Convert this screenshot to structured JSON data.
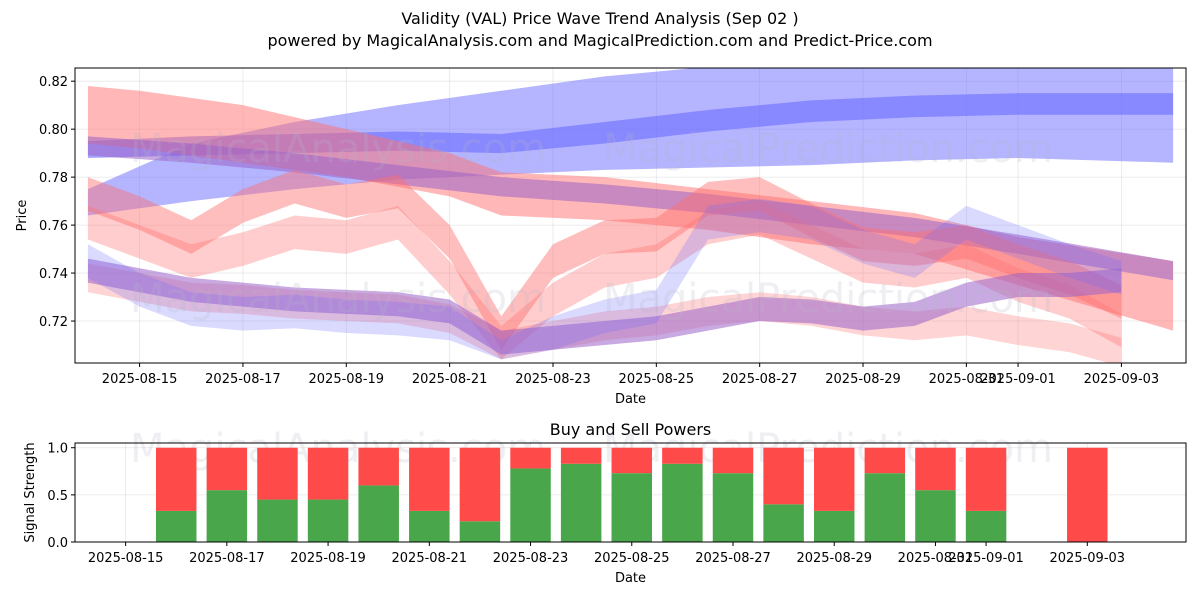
{
  "titles": {
    "main": "Validity (VAL) Price Wave Trend Analysis (Sep 02 )",
    "sub": "powered by MagicalAnalysis.com and MagicalPrediction.com and Predict-Price.com"
  },
  "watermarks": [
    "MagicalAnalysis.com",
    "MagicalPrediction.com"
  ],
  "colors": {
    "buy": "#4aa64a",
    "sell": "#ff4a4a",
    "up_band": "#6a6aff",
    "down_band": "#ff6f6f"
  },
  "chart_data": [
    {
      "type": "area",
      "title": "",
      "xlabel": "Date",
      "ylabel": "Price",
      "x_range": [
        "2025-08-13 18:00",
        "2025-09-04 06:00"
      ],
      "ylim": [
        0.7025,
        0.8255
      ],
      "x_ticks": [
        "2025-08-15",
        "2025-08-17",
        "2025-08-19",
        "2025-08-21",
        "2025-08-23",
        "2025-08-25",
        "2025-08-27",
        "2025-08-29",
        "2025-08-31",
        "2025-09-01",
        "2025-09-03"
      ],
      "y_ticks": [
        0.72,
        0.74,
        0.76,
        0.78,
        0.8,
        0.82
      ],
      "y_tick_labels": [
        "0.72",
        "0.74",
        "0.76",
        "0.78",
        "0.80",
        "0.82"
      ],
      "grid": true,
      "series": [
        {
          "name": "blue-wide-upper",
          "color": "blue",
          "opacity": 0.5,
          "x": [
            "2025-08-14",
            "2025-08-16",
            "2025-08-18",
            "2025-08-20",
            "2025-08-22",
            "2025-08-24",
            "2025-08-26",
            "2025-08-28",
            "2025-08-30",
            "2025-09-01",
            "2025-09-04"
          ],
          "upper": [
            0.775,
            0.794,
            0.803,
            0.81,
            0.816,
            0.822,
            0.826,
            0.828,
            0.829,
            0.83,
            0.83
          ],
          "lower": [
            0.764,
            0.77,
            0.775,
            0.779,
            0.781,
            0.783,
            0.784,
            0.785,
            0.787,
            0.788,
            0.786
          ]
        },
        {
          "name": "blue-mid",
          "color": "blue",
          "opacity": 0.6,
          "x": [
            "2025-08-14",
            "2025-08-16",
            "2025-08-18",
            "2025-08-20",
            "2025-08-22",
            "2025-08-24",
            "2025-08-26",
            "2025-08-28",
            "2025-08-30",
            "2025-09-01",
            "2025-09-04"
          ],
          "upper": [
            0.795,
            0.797,
            0.798,
            0.799,
            0.798,
            0.803,
            0.808,
            0.812,
            0.814,
            0.815,
            0.815
          ],
          "lower": [
            0.788,
            0.789,
            0.79,
            0.791,
            0.79,
            0.794,
            0.799,
            0.803,
            0.805,
            0.806,
            0.806
          ]
        },
        {
          "name": "red-falling-upper",
          "color": "red",
          "opacity": 0.5,
          "x": [
            "2025-08-14",
            "2025-08-15",
            "2025-08-17",
            "2025-08-19",
            "2025-08-21",
            "2025-08-22",
            "2025-08-24",
            "2025-08-26",
            "2025-08-28",
            "2025-08-30",
            "2025-09-01",
            "2025-09-04"
          ],
          "upper": [
            0.818,
            0.816,
            0.81,
            0.8,
            0.79,
            0.782,
            0.78,
            0.775,
            0.77,
            0.765,
            0.755,
            0.745
          ],
          "lower": [
            0.794,
            0.792,
            0.786,
            0.78,
            0.772,
            0.764,
            0.762,
            0.758,
            0.752,
            0.748,
            0.735,
            0.716
          ]
        },
        {
          "name": "purple-diagonal",
          "color": "purple",
          "opacity": 0.55,
          "x": [
            "2025-08-14",
            "2025-08-16",
            "2025-08-18",
            "2025-08-20",
            "2025-08-22",
            "2025-08-24",
            "2025-08-26",
            "2025-08-28",
            "2025-08-30",
            "2025-09-01",
            "2025-09-04"
          ],
          "upper": [
            0.797,
            0.794,
            0.79,
            0.785,
            0.78,
            0.777,
            0.773,
            0.768,
            0.763,
            0.756,
            0.745
          ],
          "lower": [
            0.789,
            0.786,
            0.782,
            0.777,
            0.772,
            0.769,
            0.765,
            0.76,
            0.755,
            0.748,
            0.737
          ]
        },
        {
          "name": "red-wave-high",
          "color": "red",
          "opacity": 0.45,
          "x": [
            "2025-08-14",
            "2025-08-15",
            "2025-08-16",
            "2025-08-17",
            "2025-08-18",
            "2025-08-19",
            "2025-08-20",
            "2025-08-21",
            "2025-08-22",
            "2025-08-23",
            "2025-08-24",
            "2025-08-25",
            "2025-08-26",
            "2025-08-27",
            "2025-08-28",
            "2025-08-29",
            "2025-08-30",
            "2025-08-31",
            "2025-09-01",
            "2025-09-02",
            "2025-09-03"
          ],
          "upper": [
            0.78,
            0.772,
            0.762,
            0.775,
            0.783,
            0.777,
            0.781,
            0.76,
            0.722,
            0.752,
            0.762,
            0.763,
            0.778,
            0.78,
            0.769,
            0.759,
            0.757,
            0.76,
            0.752,
            0.745,
            0.735
          ],
          "lower": [
            0.766,
            0.758,
            0.748,
            0.761,
            0.769,
            0.763,
            0.767,
            0.746,
            0.708,
            0.738,
            0.748,
            0.749,
            0.764,
            0.766,
            0.755,
            0.745,
            0.743,
            0.746,
            0.738,
            0.731,
            0.721
          ]
        },
        {
          "name": "red-wave-mid",
          "color": "red",
          "opacity": 0.35,
          "x": [
            "2025-08-14",
            "2025-08-15",
            "2025-08-16",
            "2025-08-17",
            "2025-08-18",
            "2025-08-19",
            "2025-08-20",
            "2025-08-21",
            "2025-08-22",
            "2025-08-23",
            "2025-08-24",
            "2025-08-25",
            "2025-08-26",
            "2025-08-27",
            "2025-08-28",
            "2025-08-29",
            "2025-08-30",
            "2025-08-31",
            "2025-09-01",
            "2025-09-02",
            "2025-09-03"
          ],
          "upper": [
            0.768,
            0.76,
            0.752,
            0.757,
            0.764,
            0.762,
            0.768,
            0.745,
            0.718,
            0.736,
            0.748,
            0.752,
            0.766,
            0.77,
            0.76,
            0.75,
            0.748,
            0.752,
            0.742,
            0.735,
            0.723
          ],
          "lower": [
            0.754,
            0.746,
            0.738,
            0.743,
            0.75,
            0.748,
            0.754,
            0.731,
            0.704,
            0.722,
            0.734,
            0.738,
            0.752,
            0.756,
            0.746,
            0.736,
            0.734,
            0.738,
            0.728,
            0.721,
            0.709
          ]
        },
        {
          "name": "red-wave-low",
          "color": "red",
          "opacity": 0.3,
          "x": [
            "2025-08-14",
            "2025-08-15",
            "2025-08-16",
            "2025-08-17",
            "2025-08-18",
            "2025-08-19",
            "2025-08-20",
            "2025-08-21",
            "2025-08-22",
            "2025-08-23",
            "2025-08-24",
            "2025-08-25",
            "2025-08-26",
            "2025-08-27",
            "2025-08-28",
            "2025-08-29",
            "2025-08-30",
            "2025-08-31",
            "2025-09-01",
            "2025-09-02",
            "2025-09-03"
          ],
          "upper": [
            0.744,
            0.74,
            0.736,
            0.735,
            0.733,
            0.732,
            0.731,
            0.727,
            0.716,
            0.72,
            0.724,
            0.726,
            0.73,
            0.732,
            0.73,
            0.726,
            0.724,
            0.726,
            0.722,
            0.719,
            0.713
          ],
          "lower": [
            0.732,
            0.728,
            0.724,
            0.723,
            0.721,
            0.72,
            0.719,
            0.715,
            0.704,
            0.708,
            0.712,
            0.714,
            0.718,
            0.72,
            0.718,
            0.714,
            0.712,
            0.714,
            0.71,
            0.707,
            0.701
          ]
        },
        {
          "name": "purple-wave-low",
          "color": "purple",
          "opacity": 0.55,
          "x": [
            "2025-08-14",
            "2025-08-15",
            "2025-08-16",
            "2025-08-17",
            "2025-08-18",
            "2025-08-19",
            "2025-08-20",
            "2025-08-21",
            "2025-08-22",
            "2025-08-23",
            "2025-08-24",
            "2025-08-25",
            "2025-08-26",
            "2025-08-27",
            "2025-08-28",
            "2025-08-29",
            "2025-08-30",
            "2025-08-31",
            "2025-09-01",
            "2025-09-02",
            "2025-09-03"
          ],
          "upper": [
            0.746,
            0.742,
            0.738,
            0.736,
            0.734,
            0.733,
            0.732,
            0.729,
            0.716,
            0.718,
            0.72,
            0.722,
            0.726,
            0.73,
            0.729,
            0.726,
            0.728,
            0.736,
            0.74,
            0.74,
            0.742
          ],
          "lower": [
            0.736,
            0.732,
            0.728,
            0.726,
            0.724,
            0.723,
            0.722,
            0.719,
            0.706,
            0.708,
            0.71,
            0.712,
            0.716,
            0.72,
            0.719,
            0.716,
            0.718,
            0.726,
            0.73,
            0.73,
            0.732
          ]
        },
        {
          "name": "blue-wave",
          "color": "blue",
          "opacity": 0.25,
          "x": [
            "2025-08-14",
            "2025-08-15",
            "2025-08-16",
            "2025-08-17",
            "2025-08-18",
            "2025-08-19",
            "2025-08-20",
            "2025-08-21",
            "2025-08-22",
            "2025-08-23",
            "2025-08-24",
            "2025-08-25",
            "2025-08-26",
            "2025-08-27",
            "2025-08-28",
            "2025-08-29",
            "2025-08-30",
            "2025-08-31",
            "2025-09-01",
            "2025-09-02",
            "2025-09-03"
          ],
          "upper": [
            0.752,
            0.74,
            0.732,
            0.73,
            0.731,
            0.729,
            0.728,
            0.726,
            0.712,
            0.722,
            0.729,
            0.733,
            0.768,
            0.771,
            0.768,
            0.758,
            0.752,
            0.768,
            0.76,
            0.752,
            0.745
          ],
          "lower": [
            0.738,
            0.726,
            0.718,
            0.716,
            0.717,
            0.715,
            0.714,
            0.712,
            0.704,
            0.708,
            0.715,
            0.719,
            0.754,
            0.757,
            0.754,
            0.744,
            0.738,
            0.754,
            0.746,
            0.738,
            0.731
          ]
        }
      ]
    },
    {
      "type": "bar",
      "stacked": true,
      "title": "Buy and Sell Powers",
      "xlabel": "Date",
      "ylabel": "Signal Strength",
      "ylim": [
        0,
        1.05
      ],
      "y_ticks": [
        0.0,
        0.5,
        1.0
      ],
      "y_tick_labels": [
        "0.0",
        "0.5",
        "1.0"
      ],
      "x_ticks": [
        "2025-08-15",
        "2025-08-17",
        "2025-08-19",
        "2025-08-21",
        "2025-08-23",
        "2025-08-25",
        "2025-08-27",
        "2025-08-29",
        "2025-08-31",
        "2025-09-01",
        "2025-09-03"
      ],
      "x_range": [
        "2025-08-15",
        "2025-09-04"
      ],
      "grid": true,
      "categories": [
        "2025-08-16",
        "2025-08-17",
        "2025-08-18",
        "2025-08-19",
        "2025-08-20",
        "2025-08-21",
        "2025-08-22",
        "2025-08-23",
        "2025-08-24",
        "2025-08-25",
        "2025-08-26",
        "2025-08-27",
        "2025-08-28",
        "2025-08-29",
        "2025-08-30",
        "2025-08-31",
        "2025-09-01",
        "2025-09-03"
      ],
      "series": [
        {
          "name": "Buy",
          "values": [
            0.33,
            0.55,
            0.45,
            0.45,
            0.6,
            0.33,
            0.22,
            0.78,
            0.83,
            0.73,
            0.83,
            0.73,
            0.4,
            0.33,
            0.73,
            0.55,
            0.33,
            0.0
          ]
        },
        {
          "name": "Sell",
          "values": [
            0.67,
            0.45,
            0.55,
            0.55,
            0.4,
            0.67,
            0.78,
            0.22,
            0.17,
            0.27,
            0.17,
            0.27,
            0.6,
            0.67,
            0.27,
            0.45,
            0.67,
            1.0
          ]
        }
      ]
    }
  ]
}
